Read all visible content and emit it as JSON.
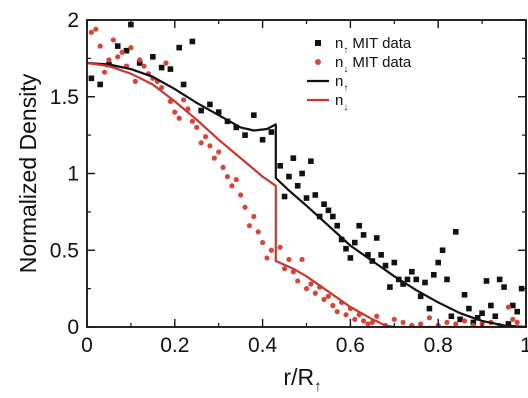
{
  "chart_data": {
    "type": "scatter",
    "title": "",
    "xlabel": "r/R",
    "xlabel_sub": "↑",
    "ylabel": "Normalized Density",
    "xlim": [
      0,
      1
    ],
    "ylim": [
      0,
      2
    ],
    "x_ticks": [
      "0",
      "0.2",
      "0.4",
      "0.6",
      "0.8",
      "1"
    ],
    "y_ticks": [
      "0",
      "0.5",
      "1",
      "1.5",
      "2"
    ],
    "grid": false,
    "legend": {
      "placement": "top-right",
      "entries": [
        {
          "symbol": "n",
          "sub": "↑",
          "text": "MIT data",
          "marker": "square",
          "color": "#111111"
        },
        {
          "symbol": "n",
          "sub": "↓",
          "text": "MIT data",
          "marker": "dot",
          "color": "#d6453a"
        },
        {
          "symbol": "n",
          "sub": "↑",
          "text": "",
          "marker": "line",
          "color": "#111111"
        },
        {
          "symbol": "n",
          "sub": "↓",
          "text": "",
          "marker": "line",
          "color": "#c8372d"
        }
      ]
    },
    "series": [
      {
        "kind": "line",
        "color": "#111111",
        "points": [
          [
            0,
            1.72
          ],
          [
            0.05,
            1.71
          ],
          [
            0.1,
            1.68
          ],
          [
            0.15,
            1.63
          ],
          [
            0.2,
            1.55
          ],
          [
            0.25,
            1.46
          ],
          [
            0.3,
            1.38
          ],
          [
            0.35,
            1.3
          ],
          [
            0.38,
            1.28
          ],
          [
            0.41,
            1.29
          ],
          [
            0.43,
            1.32
          ],
          [
            0.43,
            0.97
          ],
          [
            0.46,
            0.89
          ],
          [
            0.5,
            0.79
          ],
          [
            0.55,
            0.66
          ],
          [
            0.6,
            0.53
          ],
          [
            0.65,
            0.43
          ],
          [
            0.7,
            0.33
          ],
          [
            0.75,
            0.24
          ],
          [
            0.8,
            0.16
          ],
          [
            0.85,
            0.09
          ],
          [
            0.9,
            0.04
          ],
          [
            0.95,
            0.01
          ],
          [
            1.0,
            0.0
          ]
        ]
      },
      {
        "kind": "line",
        "color": "#c8372d",
        "points": [
          [
            0,
            1.72
          ],
          [
            0.05,
            1.7
          ],
          [
            0.1,
            1.65
          ],
          [
            0.15,
            1.58
          ],
          [
            0.2,
            1.47
          ],
          [
            0.25,
            1.35
          ],
          [
            0.3,
            1.22
          ],
          [
            0.35,
            1.1
          ],
          [
            0.4,
            0.98
          ],
          [
            0.43,
            0.92
          ],
          [
            0.43,
            0.43
          ],
          [
            0.47,
            0.38
          ],
          [
            0.5,
            0.33
          ],
          [
            0.55,
            0.23
          ],
          [
            0.6,
            0.13
          ],
          [
            0.65,
            0.05
          ],
          [
            0.68,
            0.01
          ],
          [
            0.7,
            0.0
          ],
          [
            0.8,
            0.0
          ],
          [
            0.9,
            0.0
          ],
          [
            1.0,
            0.0
          ]
        ]
      },
      {
        "kind": "scatter",
        "marker": "square",
        "color": "#111111",
        "points": [
          [
            0.01,
            1.62
          ],
          [
            0.03,
            1.58
          ],
          [
            0.05,
            1.71
          ],
          [
            0.07,
            1.83
          ],
          [
            0.09,
            1.8
          ],
          [
            0.1,
            1.97
          ],
          [
            0.12,
            1.72
          ],
          [
            0.15,
            1.76
          ],
          [
            0.17,
            1.69
          ],
          [
            0.19,
            1.68
          ],
          [
            0.21,
            1.82
          ],
          [
            0.22,
            1.58
          ],
          [
            0.24,
            1.86
          ],
          [
            0.26,
            1.41
          ],
          [
            0.28,
            1.45
          ],
          [
            0.3,
            1.4
          ],
          [
            0.32,
            1.34
          ],
          [
            0.34,
            1.3
          ],
          [
            0.36,
            1.25
          ],
          [
            0.38,
            1.38
          ],
          [
            0.4,
            1.22
          ],
          [
            0.42,
            1.27
          ],
          [
            0.44,
            1.05
          ],
          [
            0.45,
            0.85
          ],
          [
            0.46,
            0.98
          ],
          [
            0.47,
            1.1
          ],
          [
            0.48,
            0.92
          ],
          [
            0.49,
            1.0
          ],
          [
            0.5,
            0.84
          ],
          [
            0.51,
            1.08
          ],
          [
            0.52,
            0.86
          ],
          [
            0.53,
            0.72
          ],
          [
            0.54,
            0.8
          ],
          [
            0.55,
            0.76
          ],
          [
            0.56,
            0.72
          ],
          [
            0.57,
            0.66
          ],
          [
            0.58,
            0.57
          ],
          [
            0.59,
            0.51
          ],
          [
            0.6,
            0.45
          ],
          [
            0.61,
            0.55
          ],
          [
            0.62,
            0.66
          ],
          [
            0.63,
            0.6
          ],
          [
            0.64,
            0.47
          ],
          [
            0.65,
            0.43
          ],
          [
            0.66,
            0.58
          ],
          [
            0.67,
            0.47
          ],
          [
            0.68,
            0.4
          ],
          [
            0.69,
            0.26
          ],
          [
            0.7,
            0.42
          ],
          [
            0.71,
            0.31
          ],
          [
            0.72,
            0.28
          ],
          [
            0.73,
            0.31
          ],
          [
            0.74,
            0.36
          ],
          [
            0.75,
            0.31
          ],
          [
            0.76,
            0.2
          ],
          [
            0.77,
            0.29
          ],
          [
            0.78,
            0.12
          ],
          [
            0.79,
            0.34
          ],
          [
            0.8,
            0.42
          ],
          [
            0.81,
            0.5
          ],
          [
            0.82,
            0.31
          ],
          [
            0.83,
            0.07
          ],
          [
            0.84,
            0.62
          ],
          [
            0.85,
            0.05
          ],
          [
            0.86,
            0.21
          ],
          [
            0.87,
            0.12
          ],
          [
            0.88,
            0.03
          ],
          [
            0.89,
            0.06
          ],
          [
            0.9,
            0.09
          ],
          [
            0.91,
            0.3
          ],
          [
            0.92,
            0.14
          ],
          [
            0.93,
            0.07
          ],
          [
            0.94,
            0.31
          ],
          [
            0.95,
            0.26
          ],
          [
            0.96,
            0.02
          ],
          [
            0.97,
            0.14
          ],
          [
            0.98,
            0.1
          ],
          [
            0.99,
            0.25
          ]
        ]
      },
      {
        "kind": "scatter",
        "marker": "dot",
        "color": "#d6453a",
        "points": [
          [
            0.01,
            1.92
          ],
          [
            0.02,
            1.94
          ],
          [
            0.03,
            1.83
          ],
          [
            0.04,
            1.66
          ],
          [
            0.05,
            1.74
          ],
          [
            0.06,
            1.87
          ],
          [
            0.07,
            1.76
          ],
          [
            0.08,
            1.79
          ],
          [
            0.09,
            1.7
          ],
          [
            0.1,
            1.82
          ],
          [
            0.11,
            1.6
          ],
          [
            0.12,
            1.74
          ],
          [
            0.13,
            1.7
          ],
          [
            0.14,
            1.65
          ],
          [
            0.15,
            1.62
          ],
          [
            0.16,
            1.6
          ],
          [
            0.17,
            1.56
          ],
          [
            0.18,
            1.72
          ],
          [
            0.19,
            1.47
          ],
          [
            0.2,
            1.4
          ],
          [
            0.21,
            1.36
          ],
          [
            0.22,
            1.48
          ],
          [
            0.23,
            1.42
          ],
          [
            0.24,
            1.34
          ],
          [
            0.25,
            1.3
          ],
          [
            0.26,
            1.2
          ],
          [
            0.27,
            1.24
          ],
          [
            0.28,
            1.18
          ],
          [
            0.29,
            1.1
          ],
          [
            0.3,
            1.14
          ],
          [
            0.31,
            1.04
          ],
          [
            0.32,
            0.98
          ],
          [
            0.33,
            0.92
          ],
          [
            0.34,
            0.96
          ],
          [
            0.35,
            0.86
          ],
          [
            0.36,
            0.78
          ],
          [
            0.37,
            0.66
          ],
          [
            0.38,
            0.72
          ],
          [
            0.39,
            0.62
          ],
          [
            0.4,
            0.55
          ],
          [
            0.41,
            0.45
          ],
          [
            0.42,
            0.5
          ],
          [
            0.44,
            0.52
          ],
          [
            0.45,
            0.38
          ],
          [
            0.46,
            0.44
          ],
          [
            0.47,
            0.36
          ],
          [
            0.48,
            0.3
          ],
          [
            0.49,
            0.44
          ],
          [
            0.5,
            0.25
          ],
          [
            0.51,
            0.28
          ],
          [
            0.52,
            0.22
          ],
          [
            0.53,
            0.26
          ],
          [
            0.54,
            0.18
          ],
          [
            0.55,
            0.2
          ],
          [
            0.56,
            0.14
          ],
          [
            0.57,
            0.1
          ],
          [
            0.58,
            0.16
          ],
          [
            0.59,
            0.08
          ],
          [
            0.6,
            0.12
          ],
          [
            0.61,
            0.05
          ],
          [
            0.62,
            0.08
          ],
          [
            0.63,
            0.04
          ],
          [
            0.64,
            0.02
          ],
          [
            0.65,
            0.03
          ],
          [
            0.66,
            0.07
          ],
          [
            0.68,
            0.01
          ],
          [
            0.7,
            0.05
          ],
          [
            0.72,
            0.03
          ],
          [
            0.74,
            0.01
          ],
          [
            0.76,
            0.02
          ],
          [
            0.78,
            0.06
          ],
          [
            0.8,
            0.01
          ],
          [
            0.82,
            0.03
          ],
          [
            0.84,
            0.02
          ],
          [
            0.86,
            0.04
          ],
          [
            0.88,
            0.01
          ],
          [
            0.9,
            0.02
          ],
          [
            0.92,
            0.03
          ],
          [
            0.94,
            0.01
          ],
          [
            0.96,
            0.13
          ],
          [
            0.97,
            0.05
          ],
          [
            0.98,
            0.03
          ]
        ]
      }
    ]
  }
}
